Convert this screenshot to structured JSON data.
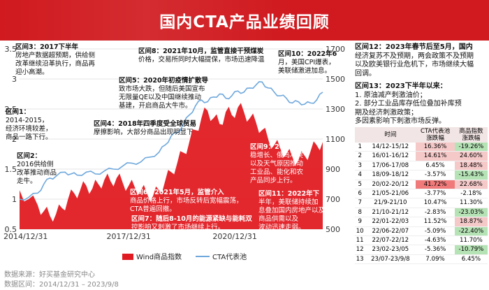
{
  "header": {
    "title": "国内CTA产品业绩回顾"
  },
  "chart_data": {
    "type": "line+area",
    "title": "国内CTA产品业绩回顾",
    "series": [
      {
        "name": "Wind商品指数",
        "axis": "right",
        "style": "area",
        "color": "#e01b22"
      },
      {
        "name": "CTA代表池",
        "axis": "left",
        "style": "line",
        "color": "#6fa8dc"
      }
    ],
    "x_ticks": [
      "2014/12/31",
      "2017/12/31",
      "2020/12/31"
    ],
    "left_axis": {
      "ticks": [
        "3.5",
        "3",
        "2.5",
        "2",
        "1.5",
        "1",
        "0.5"
      ],
      "ylim": [
        0.5,
        3.5
      ]
    },
    "right_axis": {
      "ticks": [
        "1700",
        "1500",
        "1300",
        "1100",
        "900",
        "700",
        "500"
      ],
      "ylim": [
        500,
        1700
      ]
    },
    "legend": [
      "Wind商品指数",
      "CTA代表池"
    ],
    "cta_points": [
      [
        0.0,
        1.0
      ],
      [
        0.03,
        1.03
      ],
      [
        0.06,
        1.1
      ],
      [
        0.08,
        1.25
      ],
      [
        0.1,
        1.35
      ],
      [
        0.12,
        1.38
      ],
      [
        0.15,
        1.45
      ],
      [
        0.17,
        1.42
      ],
      [
        0.19,
        1.4
      ],
      [
        0.22,
        1.45
      ],
      [
        0.25,
        1.42
      ],
      [
        0.28,
        1.47
      ],
      [
        0.31,
        1.5
      ],
      [
        0.34,
        1.55
      ],
      [
        0.37,
        1.6
      ],
      [
        0.4,
        1.62
      ],
      [
        0.43,
        1.7
      ],
      [
        0.46,
        1.78
      ],
      [
        0.48,
        1.9
      ],
      [
        0.5,
        2.05
      ],
      [
        0.52,
        2.1
      ],
      [
        0.54,
        2.25
      ],
      [
        0.56,
        2.4
      ],
      [
        0.58,
        2.55
      ],
      [
        0.6,
        2.65
      ],
      [
        0.62,
        2.62
      ],
      [
        0.64,
        2.7
      ],
      [
        0.66,
        2.75
      ],
      [
        0.68,
        2.68
      ],
      [
        0.7,
        2.72
      ],
      [
        0.72,
        2.8
      ],
      [
        0.74,
        2.78
      ],
      [
        0.76,
        2.85
      ],
      [
        0.78,
        2.9
      ],
      [
        0.8,
        2.95
      ],
      [
        0.82,
        2.85
      ],
      [
        0.84,
        2.78
      ],
      [
        0.86,
        2.72
      ],
      [
        0.88,
        2.68
      ],
      [
        0.9,
        2.6
      ],
      [
        0.92,
        2.62
      ],
      [
        0.94,
        2.58
      ],
      [
        0.96,
        2.6
      ],
      [
        0.98,
        2.65
      ],
      [
        1.0,
        2.78
      ]
    ],
    "wind_points": [
      [
        0.0,
        760
      ],
      [
        0.03,
        700
      ],
      [
        0.06,
        660
      ],
      [
        0.08,
        620
      ],
      [
        0.1,
        590
      ],
      [
        0.12,
        600
      ],
      [
        0.14,
        640
      ],
      [
        0.16,
        700
      ],
      [
        0.18,
        740
      ],
      [
        0.2,
        760
      ],
      [
        0.22,
        790
      ],
      [
        0.24,
        770
      ],
      [
        0.26,
        800
      ],
      [
        0.28,
        830
      ],
      [
        0.3,
        820
      ],
      [
        0.32,
        840
      ],
      [
        0.34,
        810
      ],
      [
        0.36,
        790
      ],
      [
        0.38,
        780
      ],
      [
        0.4,
        760
      ],
      [
        0.42,
        740
      ],
      [
        0.44,
        720
      ],
      [
        0.46,
        760
      ],
      [
        0.48,
        820
      ],
      [
        0.5,
        880
      ],
      [
        0.52,
        940
      ],
      [
        0.54,
        1010
      ],
      [
        0.56,
        1080
      ],
      [
        0.58,
        1160
      ],
      [
        0.6,
        1240
      ],
      [
        0.62,
        1290
      ],
      [
        0.64,
        1240
      ],
      [
        0.66,
        1200
      ],
      [
        0.68,
        1280
      ],
      [
        0.7,
        1260
      ],
      [
        0.72,
        1310
      ],
      [
        0.74,
        1280
      ],
      [
        0.76,
        1240
      ],
      [
        0.78,
        1210
      ],
      [
        0.8,
        1160
      ],
      [
        0.82,
        1100
      ],
      [
        0.84,
        1060
      ],
      [
        0.86,
        1040
      ],
      [
        0.88,
        1000
      ],
      [
        0.9,
        980
      ],
      [
        0.92,
        960
      ],
      [
        0.94,
        990
      ],
      [
        0.96,
        1020
      ],
      [
        0.98,
        1060
      ],
      [
        1.0,
        1080
      ]
    ]
  },
  "annotations": [
    {
      "id": "3",
      "text": "区间3：2017下半年\n房地产数据超预期，供给侧\n改革继续沿革执行，商品再\n迎小高潮。"
    },
    {
      "id": "1",
      "text": "区间1：\n2014-2015，\n经济环境较差，\n商品一路下行。"
    },
    {
      "id": "2",
      "text": "区间2：\n2016供给侧\n改革推动商品\n走牛。"
    },
    {
      "id": "8",
      "text": "区间8：2021年10月，监管直接干预煤炭\n价格，交易所同时大幅提保，市场迅速降温"
    },
    {
      "id": "5",
      "text": "区间5：2020年初疫情扩散导\n致市场大跌，但随后美国宣布\n无限量QE以及中国继续推动\n基建，开启商品大牛市。"
    },
    {
      "id": "10",
      "text": "区间10：2022年6\n月，美国CPI爆表，\n美联储激进加息。"
    },
    {
      "id": "4",
      "text": "区间4：2018年四季度受全球贸易\n摩擦影响，大部分商品出现明显下"
    },
    {
      "id": "9",
      "text": "区间9：2022年初，\n稳增长、俄乌冲突\n以及天气原因推动\n工业品、能化和农\n产品同步上行。"
    },
    {
      "id": "6",
      "text": "区间6：2021年5月，监管介入\n商品价格上行，市场反转后宽幅震荡，\nCTA普遍回撤。"
    },
    {
      "id": "11",
      "text": "区间11：2022年下\n半年，美联储持续加\n息叠加国内房地产以及\n商品供需以及\n波动迅速走弱。"
    },
    {
      "id": "7",
      "text": "区间7：随后8-10月的能源紧缺与能耗双\n控影响又刺激了市场继续上行。"
    }
  ],
  "right_panel": {
    "block12": "区间12：2023年春节后至5月，国内\n经济复苏不及预期，两会政策不及预期\n以及欧美银行业危机下，市场继续大幅\n回调。",
    "block13": "区间13：2023下半年以来：\n1. 原油减产刺激油价；\n2. 部分工业品库存低位叠加补库预\n期及经济刺激政策；\n多因素影响下刺激市场反弹。"
  },
  "table": {
    "headers": [
      "",
      "时间",
      "CTA代表池\n涨跌幅",
      "商品指数\n涨跌幅"
    ],
    "rows": [
      {
        "idx": "1",
        "period": "14/12-15/12",
        "cta": "16.36%",
        "wind": "-19.26%",
        "cta_hl": true,
        "wind_hl": true
      },
      {
        "idx": "2",
        "period": "16/01-16/12",
        "cta": "14.61%",
        "wind": "24.60%",
        "cta_hl": true,
        "wind_hl": true
      },
      {
        "idx": "3",
        "period": "17/06-17/08",
        "cta": "6.45%",
        "wind": "18.48%",
        "cta_hl": false,
        "wind_hl": true
      },
      {
        "idx": "4",
        "period": "18/09-18/12",
        "cta": "-3.57%",
        "wind": "-15.43%",
        "cta_hl": false,
        "wind_hl": true
      },
      {
        "idx": "5",
        "period": "20/02-20/12",
        "cta": "41.72%",
        "wind": "22.68%",
        "cta_hl": true,
        "wind_hl": true
      },
      {
        "idx": "6",
        "period": "21/05-21/06",
        "cta": "-3.77%",
        "wind": "-2.18%",
        "cta_hl": false,
        "wind_hl": false
      },
      {
        "idx": "7",
        "period": "21/9-21/10",
        "cta": "10.47%",
        "wind": "11.30%",
        "cta_hl": false,
        "wind_hl": false
      },
      {
        "idx": "8",
        "period": "21/10-21/12",
        "cta": "-2.83%",
        "wind": "-23.03%",
        "cta_hl": false,
        "wind_hl": true
      },
      {
        "idx": "9",
        "period": "22/01-22/03",
        "cta": "11.52%",
        "wind": "18.87%",
        "cta_hl": false,
        "wind_hl": true
      },
      {
        "idx": "10",
        "period": "22/06-22/07",
        "cta": "-5.09%",
        "wind": "-22.40%",
        "cta_hl": false,
        "wind_hl": true
      },
      {
        "idx": "11",
        "period": "22/07-22/12",
        "cta": "-4.63%",
        "wind": "11.70%",
        "cta_hl": false,
        "wind_hl": false
      },
      {
        "idx": "12",
        "period": "23/02-23/05",
        "cta": "-5.36%",
        "wind": "-10.79%",
        "cta_hl": false,
        "wind_hl": true
      },
      {
        "idx": "13",
        "period": "23/07-23/9/8",
        "cta": "7.09%",
        "wind": "6.45%",
        "cta_hl": false,
        "wind_hl": false
      }
    ]
  },
  "footer": {
    "source": "数据来源：好买基金研究中心",
    "range": "数据区间：2014/12/31 – 2023/9/8"
  }
}
